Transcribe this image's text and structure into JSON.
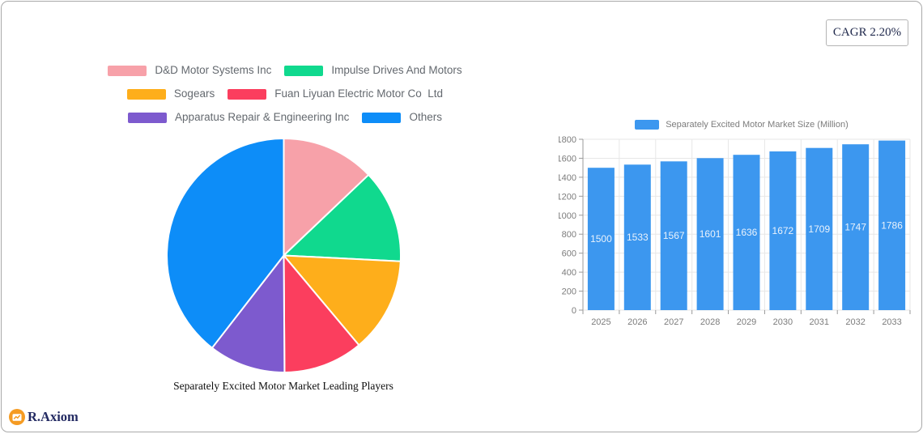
{
  "cagr_badge": "CAGR 2.20%",
  "logo_text": "R.Axiom",
  "colors": {
    "bar_fill": "#3c97ef",
    "grid_line": "#e7e7e7",
    "axis_line": "#999999",
    "axis_label": "#7c7c7c",
    "bar_value_label": "#e9f2fc",
    "legend_text": "#64696f",
    "logo_orange": "#f59b22",
    "logo_navy": "#232a62",
    "cagr_text": "#20294c",
    "pie_separator": "#ffffff"
  },
  "chart_data": [
    {
      "type": "pie",
      "title": "Separately Excited Motor Market Leading Players",
      "legend_rows": [
        [
          0,
          1
        ],
        [
          2,
          3
        ],
        [
          4,
          5
        ]
      ],
      "start_angle_deg": -90,
      "direction": "clockwise",
      "slices": [
        {
          "label": "D&D Motor Systems Inc",
          "value": 12.9,
          "color": "#f7a1a9"
        },
        {
          "label": "Impulse Drives And Motors",
          "value": 12.9,
          "color": "#10d98e"
        },
        {
          "label": "Sogears",
          "value": 13.1,
          "color": "#feae1b"
        },
        {
          "label": "Fuan Liyuan Electric Motor Co  Ltd",
          "value": 11.0,
          "color": "#fb3e5e"
        },
        {
          "label": "Apparatus Repair & Engineering Inc",
          "value": 10.6,
          "color": "#7d5ace"
        },
        {
          "label": "Others",
          "value": 39.5,
          "color": "#0d8df8"
        }
      ]
    },
    {
      "type": "bar",
      "legend_label": "Separately Excited Motor Market Size (Million)",
      "categories": [
        "2025",
        "2026",
        "2027",
        "2028",
        "2029",
        "2030",
        "2031",
        "2032",
        "2033"
      ],
      "values": [
        1500,
        1533,
        1567,
        1601,
        1636,
        1672,
        1709,
        1747,
        1786
      ],
      "ylim": [
        0,
        1800
      ],
      "ytick_step": 200,
      "grid": true,
      "legend_position": "top",
      "value_labels": "inside-center"
    }
  ]
}
